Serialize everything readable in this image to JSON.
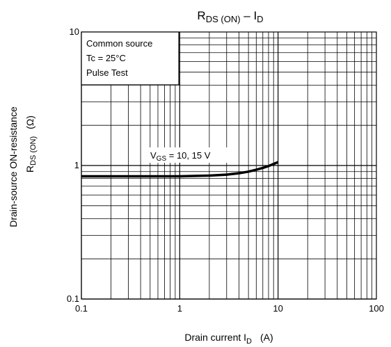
{
  "chart_data": {
    "type": "line",
    "title": {
      "main": "R",
      "sub": "DS (ON)",
      "dash": " – I",
      "sub2": "D"
    },
    "x_axis": {
      "scale": "log",
      "range": [
        0.1,
        100
      ],
      "ticks": [
        0.1,
        1,
        10,
        100
      ],
      "tick_labels": [
        "0.1",
        "1",
        "10",
        "100"
      ],
      "label": {
        "text": "Drain current  I",
        "sub": "D",
        "unit": "(A)"
      }
    },
    "y_axis": {
      "scale": "log",
      "range": [
        0.1,
        10
      ],
      "ticks": [
        0.1,
        1,
        10
      ],
      "tick_labels": [
        "0.1",
        "1",
        "10"
      ],
      "label_line1": "Drain-source ON-resistance",
      "label_line2": {
        "main": "R",
        "sub": "DS (ON)"
      },
      "unit": "(Ω)"
    },
    "conditions": [
      "Common source",
      "Tc = 25°C",
      "Pulse Test"
    ],
    "series": [
      {
        "name": {
          "main": "V",
          "sub": "GS",
          "rest": " = 10, 15 V"
        },
        "x": [
          0.1,
          0.2,
          0.5,
          1,
          2,
          3,
          4,
          5,
          6,
          7,
          8,
          10
        ],
        "y": [
          0.83,
          0.83,
          0.83,
          0.83,
          0.84,
          0.855,
          0.875,
          0.9,
          0.93,
          0.96,
          0.99,
          1.06
        ]
      }
    ],
    "grid": true,
    "colors": {
      "line": "#000000",
      "grid": "#000000",
      "background": "#ffffff"
    }
  }
}
